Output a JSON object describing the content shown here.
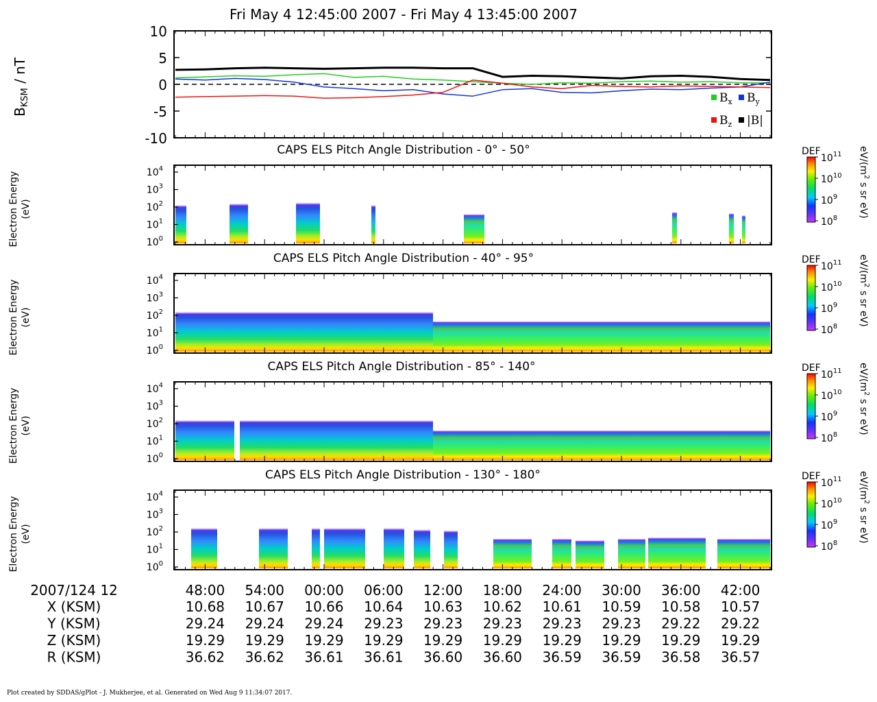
{
  "title": "Fri May 4 12:45:00 2007 - Fri May 4 13:45:00 2007",
  "footer": "Plot created by SDDAS/gPlot - J. Mukherjee, et al.  Generated on Wed Aug 9 11:34:07 2017.",
  "colors": {
    "bx": "#22cc22",
    "by": "#1133dd",
    "bz": "#ee1111",
    "bmag": "#000000"
  },
  "mag_panel": {
    "ylabel_main": "B",
    "ylabel_sub": "KSM",
    "ylabel_unit": " / nT",
    "yticks": [
      "10",
      "5",
      "0",
      "-5",
      "-10"
    ],
    "legend": [
      {
        "sym": "B",
        "sub": "x",
        "color_key": "bx"
      },
      {
        "sym": "B",
        "sub": "y",
        "color_key": "by"
      },
      {
        "sym": "B",
        "sub": "z",
        "color_key": "bz"
      },
      {
        "sym": "|B|",
        "sub": "",
        "color_key": "bmag"
      }
    ]
  },
  "spec_panels": [
    {
      "title": "CAPS ELS Pitch Angle Distribution - 0° - 50°"
    },
    {
      "title": "CAPS ELS Pitch Angle Distribution - 40° - 95°"
    },
    {
      "title": "CAPS ELS Pitch Angle Distribution - 85° - 140°"
    },
    {
      "title": "CAPS ELS Pitch Angle Distribution - 130° - 180°"
    }
  ],
  "spec_ylabel_line1": "Electron Energy",
  "spec_ylabel_line2": "(eV)",
  "spec_yticks": [
    {
      "base": "10",
      "exp": "0"
    },
    {
      "base": "10",
      "exp": "1"
    },
    {
      "base": "10",
      "exp": "2"
    },
    {
      "base": "10",
      "exp": "3"
    },
    {
      "base": "10",
      "exp": "4"
    }
  ],
  "colorbar": {
    "label": "DEF",
    "unit_prefix": "eV/(m",
    "unit_exp": "2",
    "unit_suffix": " s sr eV)",
    "ticks": [
      {
        "base": "10",
        "exp": "11"
      },
      {
        "base": "10",
        "exp": "10"
      },
      {
        "base": "10",
        "exp": "9"
      },
      {
        "base": "10",
        "exp": "8"
      }
    ]
  },
  "ephemeris": {
    "date_label": "2007/124 12",
    "row_labels": [
      "X (KSM)",
      "Y (KSM)",
      "Z (KSM)",
      "R (KSM)"
    ],
    "times": [
      "48:00",
      "54:00",
      "00:00",
      "06:00",
      "12:00",
      "18:00",
      "24:00",
      "30:00",
      "36:00",
      "42:00"
    ],
    "x": [
      "10.68",
      "10.67",
      "10.66",
      "10.64",
      "10.63",
      "10.62",
      "10.61",
      "10.59",
      "10.58",
      "10.57"
    ],
    "y": [
      "29.24",
      "29.24",
      "29.24",
      "29.23",
      "29.23",
      "29.23",
      "29.23",
      "29.23",
      "29.22",
      "29.22"
    ],
    "z": [
      "19.29",
      "19.29",
      "19.29",
      "19.29",
      "19.29",
      "19.29",
      "19.29",
      "19.29",
      "19.29",
      "19.29"
    ],
    "r": [
      "36.62",
      "36.62",
      "36.61",
      "36.61",
      "36.60",
      "36.60",
      "36.59",
      "36.59",
      "36.58",
      "36.57"
    ]
  },
  "chart_data": {
    "type": "line",
    "x_unit": "minutes after 12:45",
    "xlim": [
      0,
      60
    ],
    "ylim": [
      -10,
      10
    ],
    "series": [
      {
        "name": "Bx",
        "x": [
          0,
          3,
          6,
          9,
          12,
          15,
          18,
          21,
          24,
          27,
          30,
          33,
          36,
          39,
          42,
          45,
          48,
          51,
          54,
          57,
          60
        ],
        "values": [
          1.2,
          1.4,
          1.6,
          1.5,
          1.8,
          2.0,
          1.3,
          1.5,
          1.0,
          0.8,
          0.5,
          0.2,
          0.0,
          0.3,
          0.2,
          0.5,
          0.6,
          0.4,
          0.5,
          0.3,
          0.3
        ]
      },
      {
        "name": "By",
        "x": [
          0,
          3,
          6,
          9,
          12,
          15,
          18,
          21,
          24,
          27,
          30,
          33,
          36,
          39,
          42,
          45,
          48,
          51,
          54,
          57,
          60
        ],
        "values": [
          1.0,
          0.8,
          1.1,
          0.9,
          0.4,
          -0.5,
          -0.8,
          -1.2,
          -1.0,
          -1.8,
          -2.2,
          -1.0,
          -0.8,
          -1.5,
          -1.6,
          -1.2,
          -0.9,
          -1.0,
          -0.7,
          -0.5,
          0.4
        ]
      },
      {
        "name": "Bz",
        "x": [
          0,
          3,
          6,
          9,
          12,
          15,
          18,
          21,
          24,
          27,
          30,
          33,
          36,
          39,
          42,
          45,
          48,
          51,
          54,
          57,
          60
        ],
        "values": [
          -2.4,
          -2.3,
          -2.2,
          -2.1,
          -2.2,
          -2.6,
          -2.5,
          -2.3,
          -2.0,
          -1.5,
          0.8,
          0.2,
          -0.5,
          -0.8,
          -0.2,
          -0.4,
          -0.5,
          -0.3,
          -0.4,
          -0.5,
          -0.6
        ]
      },
      {
        "name": "|B|",
        "x": [
          0,
          3,
          6,
          9,
          12,
          15,
          18,
          21,
          24,
          27,
          30,
          33,
          36,
          39,
          42,
          45,
          48,
          51,
          54,
          57,
          60
        ],
        "values": [
          2.7,
          2.8,
          3.0,
          3.1,
          3.0,
          2.9,
          3.0,
          3.1,
          3.1,
          3.0,
          3.0,
          1.4,
          1.6,
          1.5,
          1.3,
          1.1,
          1.5,
          1.6,
          1.4,
          1.0,
          0.8
        ]
      }
    ]
  }
}
